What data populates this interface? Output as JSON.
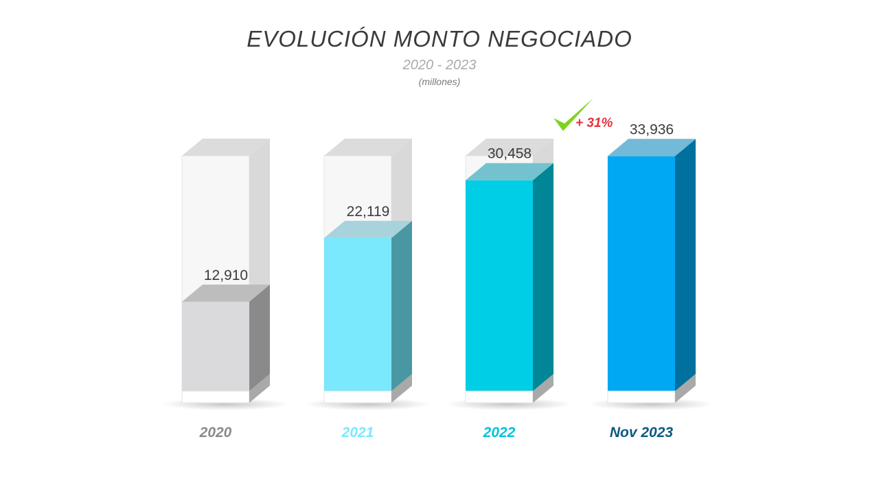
{
  "chart_data": {
    "type": "bar",
    "title": "EVOLUCIÓN MONTO NEGOCIADO",
    "subtitle": "2020 - 2023",
    "unit": "(millones)",
    "categories": [
      "2020",
      "2021",
      "2022",
      "Nov 2023"
    ],
    "values": [
      12910,
      22119,
      30458,
      33936
    ],
    "value_labels": [
      "12,910",
      "22,119",
      "30,458",
      "33,936"
    ],
    "ylim": [
      0,
      34000
    ],
    "grid": false,
    "legend": "none",
    "annotations": [
      {
        "text": "+ 31%",
        "icon": "checkmark-icon",
        "near_category": "2022"
      }
    ],
    "colors": {
      "bars": [
        "#dadadc",
        "#7ae8fd",
        "#00cde6",
        "#00a7f3"
      ],
      "side": [
        "#8a8a8a",
        "#4a97a4",
        "#008696",
        "#00709f"
      ],
      "top": [
        "#bdbdbd",
        "#a9d3dc",
        "#74c2cf",
        "#72bad8"
      ],
      "labels": [
        "#8a8a8a",
        "#7ae8fd",
        "#00c3dc",
        "#0a5a80"
      ],
      "growth_text": "#e8303d",
      "check": "#7ed321"
    }
  }
}
